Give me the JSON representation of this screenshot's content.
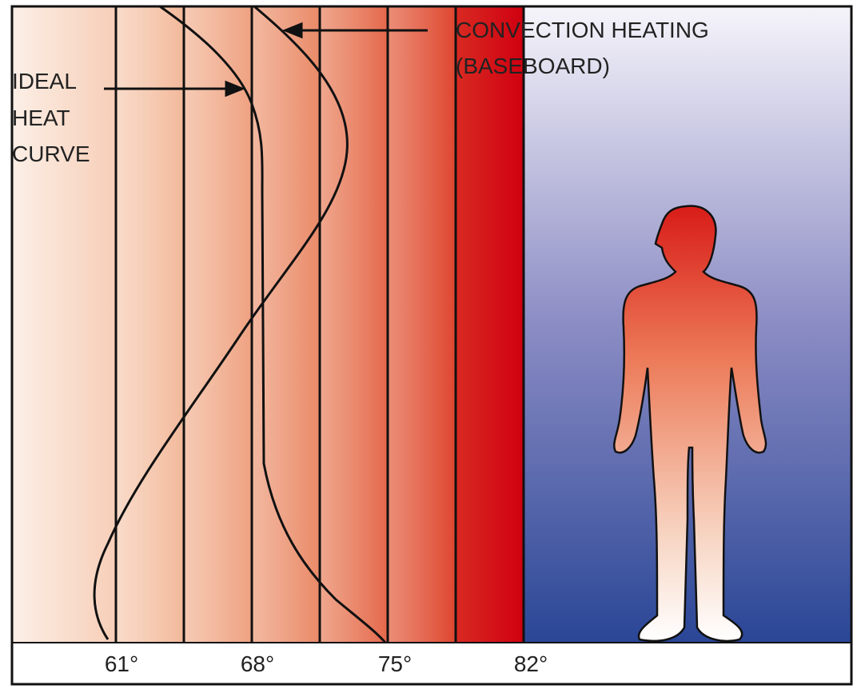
{
  "labels": {
    "ideal": [
      "IDEAL",
      "HEAT",
      "CURVE"
    ],
    "convection": [
      "CONVECTION HEATING",
      "(BASEBOARD)"
    ]
  },
  "axis": {
    "ticks": [
      "61°",
      "68°",
      "75°",
      "82°"
    ]
  }
}
